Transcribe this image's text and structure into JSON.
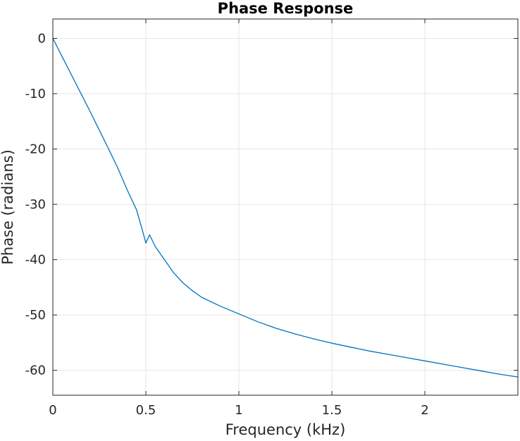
{
  "chart_data": {
    "type": "line",
    "title": "Phase Response",
    "xlabel": "Frequency (kHz)",
    "ylabel": "Phase (radians)",
    "xlim": [
      0,
      2.5
    ],
    "ylim": [
      -64.5,
      3.5
    ],
    "x_ticks": [
      0,
      0.5,
      1,
      1.5,
      2
    ],
    "x_tick_labels": [
      "0",
      "0.5",
      "1",
      "1.5",
      "2"
    ],
    "y_ticks": [
      0,
      -10,
      -20,
      -30,
      -40,
      -50,
      -60
    ],
    "y_tick_labels": [
      "0",
      "-10",
      "-20",
      "-30",
      "-40",
      "-50",
      "-60"
    ],
    "grid": true,
    "line_color": "#0072bd",
    "grid_color": "#e6e6e6",
    "axes_color": "#262626",
    "series": [
      {
        "x": [
          0,
          0.05,
          0.1,
          0.15,
          0.2,
          0.25,
          0.3,
          0.35,
          0.4,
          0.45,
          0.48,
          0.5,
          0.52,
          0.55,
          0.6,
          0.65,
          0.7,
          0.75,
          0.8,
          0.9,
          1.0,
          1.1,
          1.2,
          1.3,
          1.4,
          1.5,
          1.6,
          1.7,
          1.8,
          1.9,
          2.0,
          2.1,
          2.2,
          2.3,
          2.4,
          2.5
        ],
        "y": [
          0,
          -3.3,
          -6.6,
          -9.9,
          -13.2,
          -16.6,
          -20.0,
          -23.5,
          -27.4,
          -31.0,
          -34.5,
          -37.0,
          -35.5,
          -37.6,
          -40.0,
          -42.4,
          -44.2,
          -45.6,
          -46.8,
          -48.4,
          -49.8,
          -51.2,
          -52.4,
          -53.4,
          -54.3,
          -55.1,
          -55.8,
          -56.5,
          -57.1,
          -57.7,
          -58.3,
          -58.9,
          -59.5,
          -60.1,
          -60.7,
          -61.2
        ]
      }
    ]
  }
}
